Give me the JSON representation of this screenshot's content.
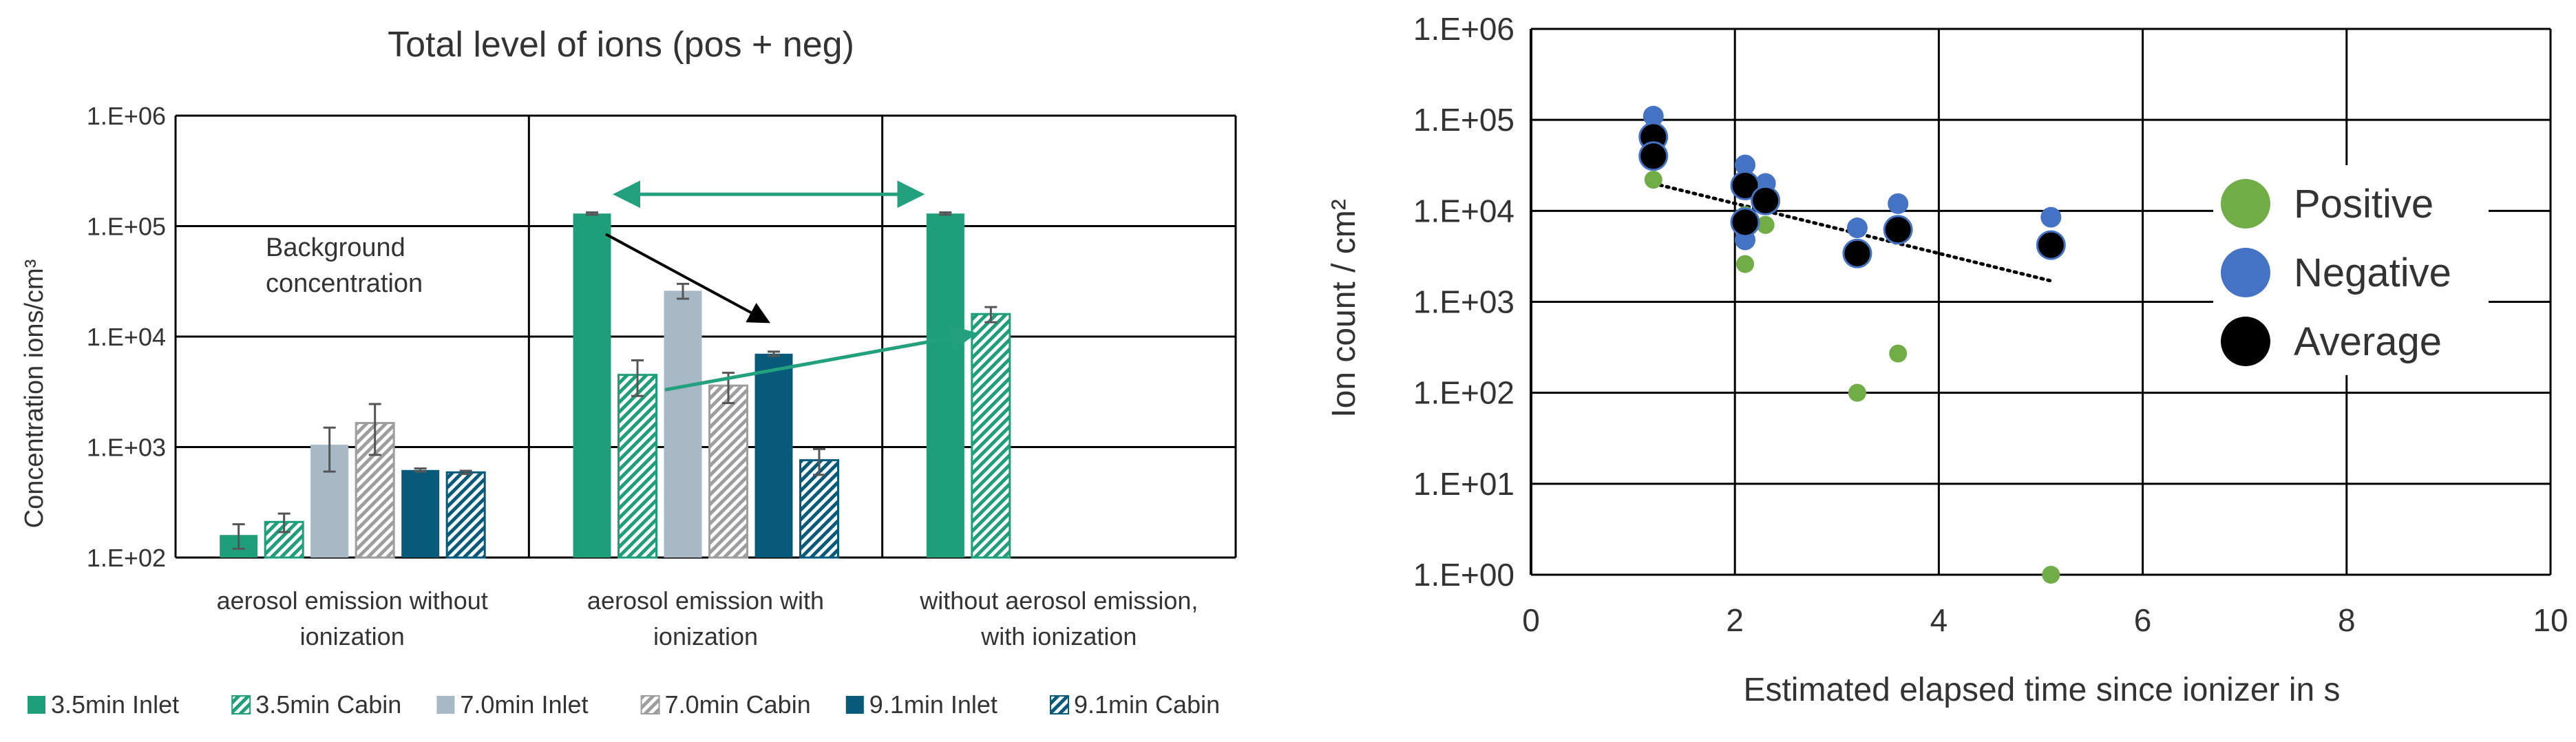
{
  "colors": {
    "inlet35": "#1f9e7a",
    "inlet70": "#a7b9c6",
    "inlet91": "#085a7a",
    "cabin70": "#9e9e9e",
    "arrow_green": "#23a07e",
    "arrow_black": "#000000",
    "positive": "#70ad47",
    "negative": "#4472c4",
    "average": "#000000",
    "trend": "#000000"
  },
  "chart_data": [
    {
      "type": "bar",
      "title": "Total level of ions (pos + neg)",
      "ylabel": "Concentration ions/cm³",
      "yscale": "log",
      "ylim": [
        100,
        1000000
      ],
      "yticks": [
        "1.E+02",
        "1.E+03",
        "1.E+04",
        "1.E+05",
        "1.E+06"
      ],
      "grid": true,
      "legend_position": "bottom",
      "categories": [
        [
          "aerosol emission without",
          "ionization"
        ],
        [
          "aerosol emission with",
          "ionization"
        ],
        [
          "without aerosol emission,",
          "with ionization"
        ]
      ],
      "series": [
        {
          "name": "3.5min Inlet",
          "style": "solid",
          "color": "#1f9e7a",
          "values": [
            160,
            130000,
            130000
          ],
          "errors": [
            40,
            3000,
            3000
          ]
        },
        {
          "name": "3.5min Cabin",
          "style": "hatch",
          "color": "#1f9e7a",
          "values": [
            210,
            4500,
            16000
          ],
          "errors": [
            40,
            1600,
            2500
          ]
        },
        {
          "name": "7.0min Inlet",
          "style": "solid",
          "color": "#a7b9c6",
          "values": [
            1050,
            26000,
            null
          ],
          "errors": [
            450,
            4000,
            null
          ]
        },
        {
          "name": "7.0min Cabin",
          "style": "hatch",
          "color": "#9e9e9e",
          "values": [
            1650,
            3600,
            null
          ],
          "errors": [
            800,
            1100,
            null
          ]
        },
        {
          "name": "9.1min Inlet",
          "style": "solid",
          "color": "#085a7a",
          "values": [
            620,
            7000,
            null
          ],
          "errors": [
            20,
            300,
            null
          ]
        },
        {
          "name": "9.1min Cabin",
          "style": "hatch",
          "color": "#085a7a",
          "values": [
            590,
            760,
            null
          ],
          "errors": [
            20,
            200,
            null
          ]
        }
      ],
      "annotations": [
        {
          "text_lines": [
            "Background",
            "concentration"
          ]
        }
      ]
    },
    {
      "type": "scatter",
      "xlabel": "Estimated elapsed time since ionizer in s",
      "ylabel": "Ion count / cm²",
      "yscale": "log",
      "xlim": [
        0,
        10
      ],
      "ylim": [
        1,
        1000000
      ],
      "xticks": [
        "0",
        "2",
        "4",
        "6",
        "8",
        "10"
      ],
      "yticks": [
        "1.E+00",
        "1.E+01",
        "1.E+02",
        "1.E+03",
        "1.E+04",
        "1.E+05",
        "1.E+06"
      ],
      "grid": true,
      "legend_position": "right",
      "series": [
        {
          "name": "Positive",
          "color": "#70ad47",
          "points": [
            [
              1.2,
              22000
            ],
            [
              1.2,
              42000
            ],
            [
              2.1,
              2600
            ],
            [
              2.1,
              9000
            ],
            [
              2.3,
              7000
            ],
            [
              3.2,
              100
            ],
            [
              3.6,
              270
            ],
            [
              5.1,
              1
            ]
          ]
        },
        {
          "name": "Negative",
          "color": "#4472c4",
          "points": [
            [
              1.2,
              110000
            ],
            [
              1.2,
              75000
            ],
            [
              2.1,
              32000
            ],
            [
              2.1,
              6500
            ],
            [
              2.1,
              4800
            ],
            [
              2.3,
              20000
            ],
            [
              3.2,
              6500
            ],
            [
              3.6,
              12000
            ],
            [
              5.1,
              8500
            ]
          ]
        },
        {
          "name": "Average",
          "color": "#000000",
          "points": [
            [
              1.2,
              65000
            ],
            [
              1.2,
              40000
            ],
            [
              2.1,
              19000
            ],
            [
              2.1,
              7500
            ],
            [
              2.3,
              13000
            ],
            [
              3.2,
              3400
            ],
            [
              3.6,
              6200
            ],
            [
              5.1,
              4200
            ]
          ]
        }
      ],
      "trendline": {
        "style": "dotted",
        "from": [
          1.2,
          20000
        ],
        "to": [
          5.1,
          1700
        ]
      }
    }
  ]
}
